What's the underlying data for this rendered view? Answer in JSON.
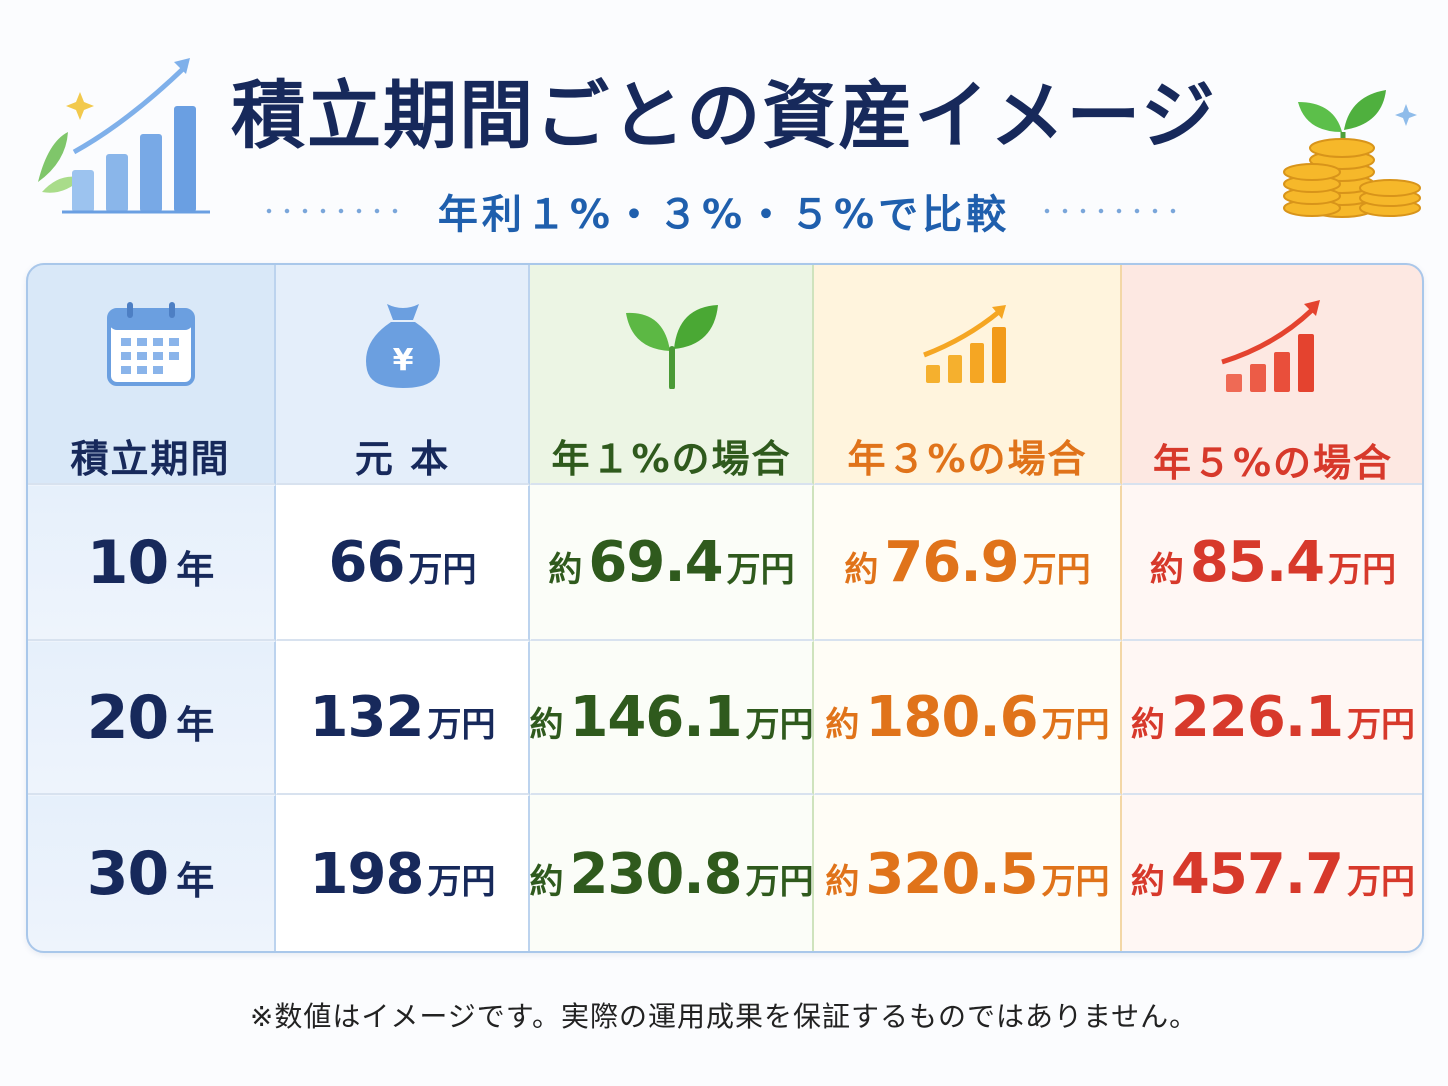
{
  "title": "積立期間ごとの資産イメージ",
  "subtitle": "年利１%・３%・５%で比較",
  "colors": {
    "navy": "#17295b",
    "blue": "#1f5fad",
    "green": "#2f5a1d",
    "orange": "#e0731a",
    "red": "#d7392b"
  },
  "decorations": {
    "left": [
      "sparkle-icon",
      "leaf-icon",
      "growth-bar-chart-icon"
    ],
    "right": [
      "sprout-icon",
      "coin-stack-icon",
      "sparkle-icon"
    ]
  },
  "table": {
    "headers": [
      {
        "label": "積立期間",
        "icon": "calendar-icon"
      },
      {
        "label": "元 本",
        "icon": "money-bag-yen-icon"
      },
      {
        "label": "年１%の場合",
        "icon": "sprout-icon"
      },
      {
        "label": "年３%の場合",
        "icon": "growth-chart-icon"
      },
      {
        "label": "年５%の場合",
        "icon": "growth-chart-icon"
      }
    ],
    "rows": [
      {
        "period": {
          "num": "10",
          "unit": "年"
        },
        "principal": {
          "num": "66",
          "unit": "万円"
        },
        "r1": {
          "pre": "約",
          "num": "69.4",
          "unit": "万円"
        },
        "r3": {
          "pre": "約",
          "num": "76.9",
          "unit": "万円"
        },
        "r5": {
          "pre": "約",
          "num": "85.4",
          "unit": "万円"
        }
      },
      {
        "period": {
          "num": "20",
          "unit": "年"
        },
        "principal": {
          "num": "132",
          "unit": "万円"
        },
        "r1": {
          "pre": "約",
          "num": "146.1",
          "unit": "万円"
        },
        "r3": {
          "pre": "約",
          "num": "180.6",
          "unit": "万円"
        },
        "r5": {
          "pre": "約",
          "num": "226.1",
          "unit": "万円"
        }
      },
      {
        "period": {
          "num": "30",
          "unit": "年"
        },
        "principal": {
          "num": "198",
          "unit": "万円"
        },
        "r1": {
          "pre": "約",
          "num": "230.8",
          "unit": "万円"
        },
        "r3": {
          "pre": "約",
          "num": "320.5",
          "unit": "万円"
        },
        "r5": {
          "pre": "約",
          "num": "457.7",
          "unit": "万円"
        }
      }
    ]
  },
  "note": "※数値はイメージです。実際の運用成果を保証するものではありません。"
}
